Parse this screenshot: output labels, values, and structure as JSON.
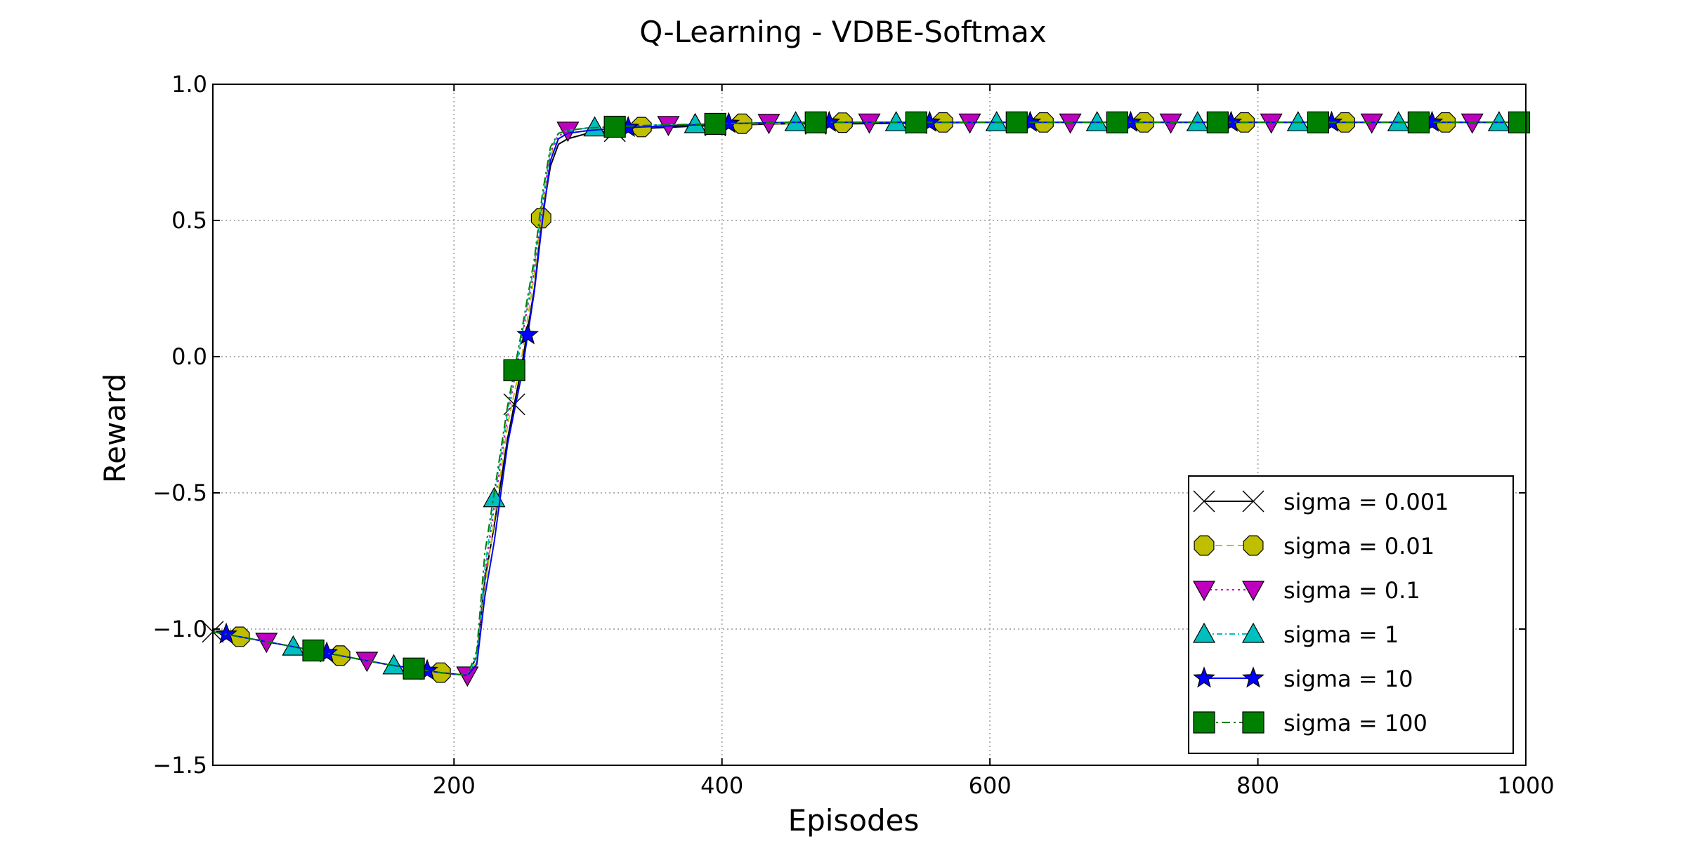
{
  "chart_data": {
    "type": "line",
    "title": "Q-Learning - VDBE-Softmax",
    "xlabel": "Episodes",
    "ylabel": "Reward",
    "xlim": [
      20,
      1000
    ],
    "ylim": [
      -1.5,
      1.0
    ],
    "xticks": [
      200,
      400,
      600,
      800,
      1000
    ],
    "xtick_labels": [
      "200",
      "400",
      "600",
      "800",
      "1000"
    ],
    "yticks": [
      -1.5,
      -1.0,
      -0.5,
      0.0,
      0.5,
      1.0
    ],
    "ytick_labels": [
      "−1.5",
      "−1.0",
      "−0.5",
      "0.0",
      "0.5",
      "1.0"
    ],
    "grid": true,
    "legend_position": "lower-right",
    "series": [
      {
        "name": "sigma = 0.001",
        "color": "#000000",
        "marker": "x",
        "dash": "",
        "marker_offset": 0
      },
      {
        "name": "sigma = 0.01",
        "color": "#bfbf00",
        "marker": "octagon",
        "dash": "10 6",
        "marker_offset": 20
      },
      {
        "name": "sigma = 0.1",
        "color": "#bf00bf",
        "marker": "triangle-down",
        "dash": "3 5",
        "marker_offset": 40
      },
      {
        "name": "sigma = 1",
        "color": "#00bfbf",
        "marker": "triangle-up",
        "dash": "8 4 2 4",
        "marker_offset": 60
      },
      {
        "name": "sigma = 10",
        "color": "#0000ff",
        "marker": "star",
        "dash": "",
        "marker_offset": 10
      },
      {
        "name": "sigma = 100",
        "color": "#008000",
        "marker": "square",
        "dash": "12 5 3 5",
        "marker_offset": 75
      }
    ],
    "x": [
      20,
      75,
      150,
      190,
      210,
      217,
      223,
      230,
      240,
      250,
      260,
      266,
      272,
      278,
      285,
      300,
      325,
      350,
      400,
      450,
      500,
      600,
      700,
      800,
      900,
      1000
    ],
    "y_by_series": [
      [
        -1.01,
        -1.06,
        -1.13,
        -1.16,
        -1.17,
        -1.1,
        -0.82,
        -0.62,
        -0.3,
        -0.05,
        0.25,
        0.52,
        0.7,
        0.78,
        0.8,
        0.82,
        0.83,
        0.84,
        0.85,
        0.855,
        0.855,
        0.86,
        0.86,
        0.86,
        0.86,
        0.86
      ],
      [
        -1.01,
        -1.06,
        -1.13,
        -1.16,
        -1.17,
        -1.12,
        -0.85,
        -0.6,
        -0.25,
        -0.02,
        0.3,
        0.55,
        0.74,
        0.8,
        0.82,
        0.83,
        0.84,
        0.845,
        0.855,
        0.855,
        0.86,
        0.86,
        0.86,
        0.86,
        0.86,
        0.86
      ],
      [
        -1.01,
        -1.06,
        -1.13,
        -1.16,
        -1.17,
        -1.1,
        -0.8,
        -0.55,
        -0.22,
        0.05,
        0.32,
        0.56,
        0.75,
        0.81,
        0.83,
        0.84,
        0.845,
        0.85,
        0.855,
        0.86,
        0.86,
        0.86,
        0.86,
        0.86,
        0.86,
        0.86
      ],
      [
        -1.01,
        -1.06,
        -1.13,
        -1.16,
        -1.17,
        -1.1,
        -0.78,
        -0.52,
        -0.2,
        0.06,
        0.34,
        0.58,
        0.76,
        0.82,
        0.83,
        0.84,
        0.845,
        0.85,
        0.855,
        0.86,
        0.86,
        0.86,
        0.86,
        0.86,
        0.86,
        0.86
      ],
      [
        -1.01,
        -1.06,
        -1.13,
        -1.16,
        -1.17,
        -1.13,
        -0.88,
        -0.68,
        -0.32,
        -0.08,
        0.24,
        0.5,
        0.72,
        0.8,
        0.82,
        0.83,
        0.84,
        0.845,
        0.855,
        0.86,
        0.86,
        0.86,
        0.86,
        0.86,
        0.86,
        0.86
      ],
      [
        -1.01,
        -1.06,
        -1.13,
        -1.16,
        -1.17,
        -1.08,
        -0.72,
        -0.5,
        -0.18,
        0.08,
        0.36,
        0.6,
        0.77,
        0.82,
        0.83,
        0.84,
        0.845,
        0.85,
        0.855,
        0.86,
        0.86,
        0.86,
        0.86,
        0.86,
        0.86,
        0.86
      ]
    ],
    "marker_spacing": 75
  }
}
